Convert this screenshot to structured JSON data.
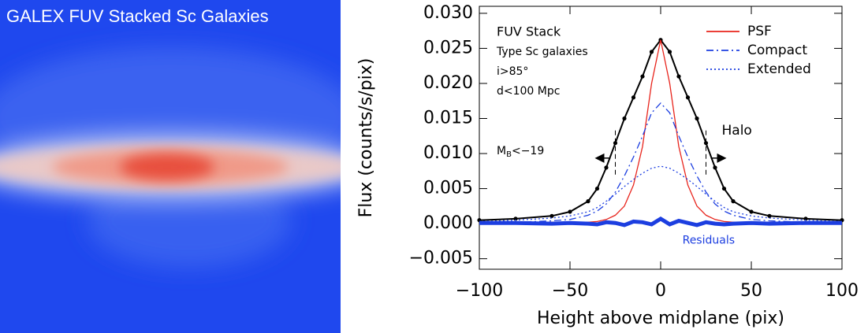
{
  "image": {
    "title": "GALEX FUV Stacked Sc Galaxies"
  },
  "chart_data": {
    "type": "line",
    "xlabel": "Height above midplane (pix)",
    "ylabel": "Flux (counts/s/pix)",
    "xlim": [
      -100,
      100
    ],
    "xticks": [
      {
        "value": -100,
        "label": "−100"
      },
      {
        "value": -50,
        "label": "−50"
      },
      0,
      50,
      100
    ],
    "ylim": [
      -0.0065,
      0.031
    ],
    "yticks": [
      {
        "value": -0.005,
        "label": "−0.005"
      },
      {
        "value": 0,
        "label": "0.000"
      },
      {
        "value": 0.005,
        "label": "0.005"
      },
      {
        "value": 0.01,
        "label": "0.010"
      },
      {
        "value": 0.015,
        "label": "0.015"
      },
      {
        "value": 0.02,
        "label": "0.020"
      },
      {
        "value": 0.025,
        "label": "0.025"
      },
      {
        "value": 0.03,
        "label": "0.030"
      }
    ],
    "x": [
      -100,
      -80,
      -60,
      -50,
      -40,
      -35,
      -30,
      -25,
      -20,
      -15,
      -10,
      -5,
      0,
      5,
      10,
      15,
      20,
      25,
      30,
      35,
      40,
      50,
      60,
      80,
      100
    ],
    "series": [
      {
        "color": "#000000",
        "markers": true,
        "legend": false,
        "values": [
          0.0005,
          0.0007,
          0.0011,
          0.0017,
          0.0032,
          0.005,
          0.008,
          0.0115,
          0.015,
          0.018,
          0.021,
          0.0245,
          0.0262,
          0.0245,
          0.021,
          0.018,
          0.015,
          0.0115,
          0.008,
          0.005,
          0.0032,
          0.0017,
          0.0011,
          0.0007,
          0.0005
        ]
      },
      {
        "name": "PSF",
        "color": "#e8241c",
        "dash": "none",
        "legend": true,
        "values": [
          0.0002,
          0.0002,
          0.0002,
          0.0002,
          0.0002,
          0.0003,
          0.0006,
          0.0012,
          0.0025,
          0.0055,
          0.011,
          0.02,
          0.0262,
          0.02,
          0.011,
          0.0055,
          0.0025,
          0.0012,
          0.0006,
          0.0003,
          0.0002,
          0.0002,
          0.0002,
          0.0002,
          0.0002
        ]
      },
      {
        "name": "Compact",
        "color": "#1c3ee0",
        "dash": "9 4 2 4",
        "legend": true,
        "values": [
          0.0001,
          0.0002,
          0.0004,
          0.0006,
          0.0012,
          0.0018,
          0.0028,
          0.0045,
          0.0068,
          0.0095,
          0.0125,
          0.0158,
          0.0172,
          0.0158,
          0.0125,
          0.0095,
          0.0068,
          0.0045,
          0.0028,
          0.0018,
          0.0012,
          0.0006,
          0.0004,
          0.0002,
          0.0001
        ]
      },
      {
        "name": "Extended",
        "color": "#1c3ee0",
        "dash": "2 3",
        "legend": true,
        "values": [
          0.0003,
          0.0005,
          0.0008,
          0.0011,
          0.0017,
          0.0023,
          0.0032,
          0.0042,
          0.0053,
          0.0063,
          0.0072,
          0.0079,
          0.0082,
          0.0079,
          0.0072,
          0.0063,
          0.0053,
          0.0042,
          0.0032,
          0.0023,
          0.0017,
          0.0011,
          0.0008,
          0.0005,
          0.0003
        ]
      },
      {
        "name": "Residuals",
        "color": "#1c3ee0",
        "dash": "none",
        "thick": true,
        "legend": false,
        "values": [
          0.0001,
          0.0001,
          0,
          0.0001,
          0,
          -0.0001,
          0.0002,
          0.0001,
          -0.0002,
          0.0003,
          0.0002,
          -0.0001,
          0.0007,
          -0.0001,
          0.0004,
          0.0001,
          -0.0002,
          0.0002,
          0,
          -0.0001,
          0,
          0.0001,
          0,
          0.0001,
          0.0001
        ]
      }
    ],
    "legend_position": "upper right",
    "annotations": [
      "FUV Stack",
      "Type Sc galaxies",
      "i>85°",
      "d<100 Mpc"
    ],
    "magnitude_cut": {
      "symbol": "M",
      "subscript": "B",
      "text": "<−19"
    },
    "halo_label": "Halo",
    "halo_lines": {
      "x": [
        -25,
        25
      ],
      "y": [
        0.007,
        0.0135
      ]
    }
  }
}
